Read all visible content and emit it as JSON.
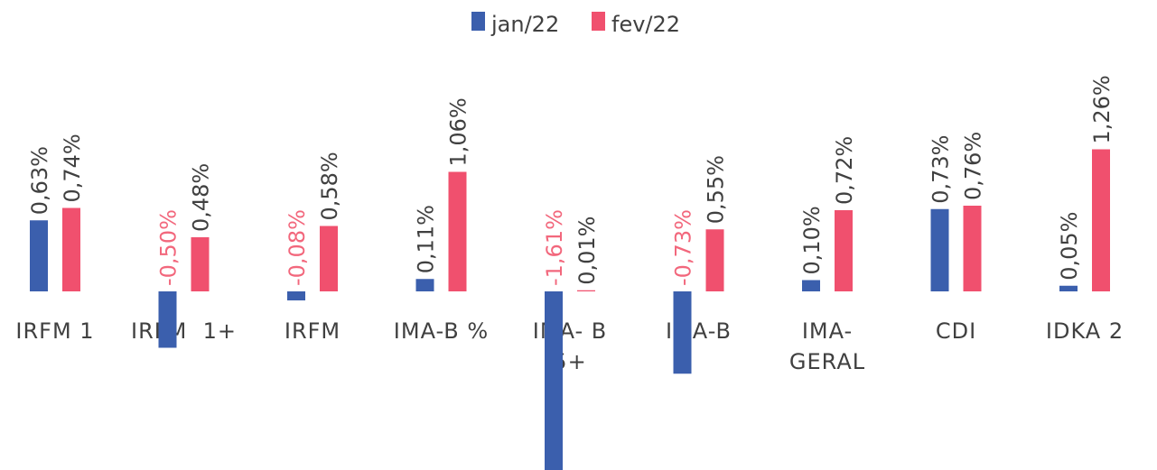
{
  "chart_data": {
    "type": "bar",
    "categories": [
      [
        "IRFM 1"
      ],
      [
        "IRFM  1+"
      ],
      [
        "IRFM"
      ],
      [
        "IMA-B %"
      ],
      [
        "IMA- B",
        "5+"
      ],
      [
        "IMA-B"
      ],
      [
        "IMA-",
        "GERAL"
      ],
      [
        "CDI"
      ],
      [
        "IDKA 2"
      ]
    ],
    "series": [
      {
        "name": "jan/22",
        "color": "#3b5fad",
        "values": [
          0.63,
          -0.5,
          -0.08,
          0.11,
          -1.61,
          -0.73,
          0.1,
          0.73,
          0.05
        ],
        "value_labels": [
          "0,63%",
          "-0,50%",
          "-0,08%",
          "0,11%",
          "-1,61%",
          "-0,73%",
          "0,10%",
          "0,73%",
          "0,05%"
        ]
      },
      {
        "name": "fev/22",
        "color": "#f0506e",
        "values": [
          0.74,
          0.48,
          0.58,
          1.06,
          0.01,
          0.55,
          0.72,
          0.76,
          1.26
        ],
        "value_labels": [
          "0,74%",
          "0,48%",
          "0,58%",
          "1,06%",
          "0,01%",
          "0,55%",
          "0,72%",
          "0,76%",
          "1,26%"
        ]
      }
    ],
    "negative_label_color": "#f2677c",
    "legend": "top"
  }
}
